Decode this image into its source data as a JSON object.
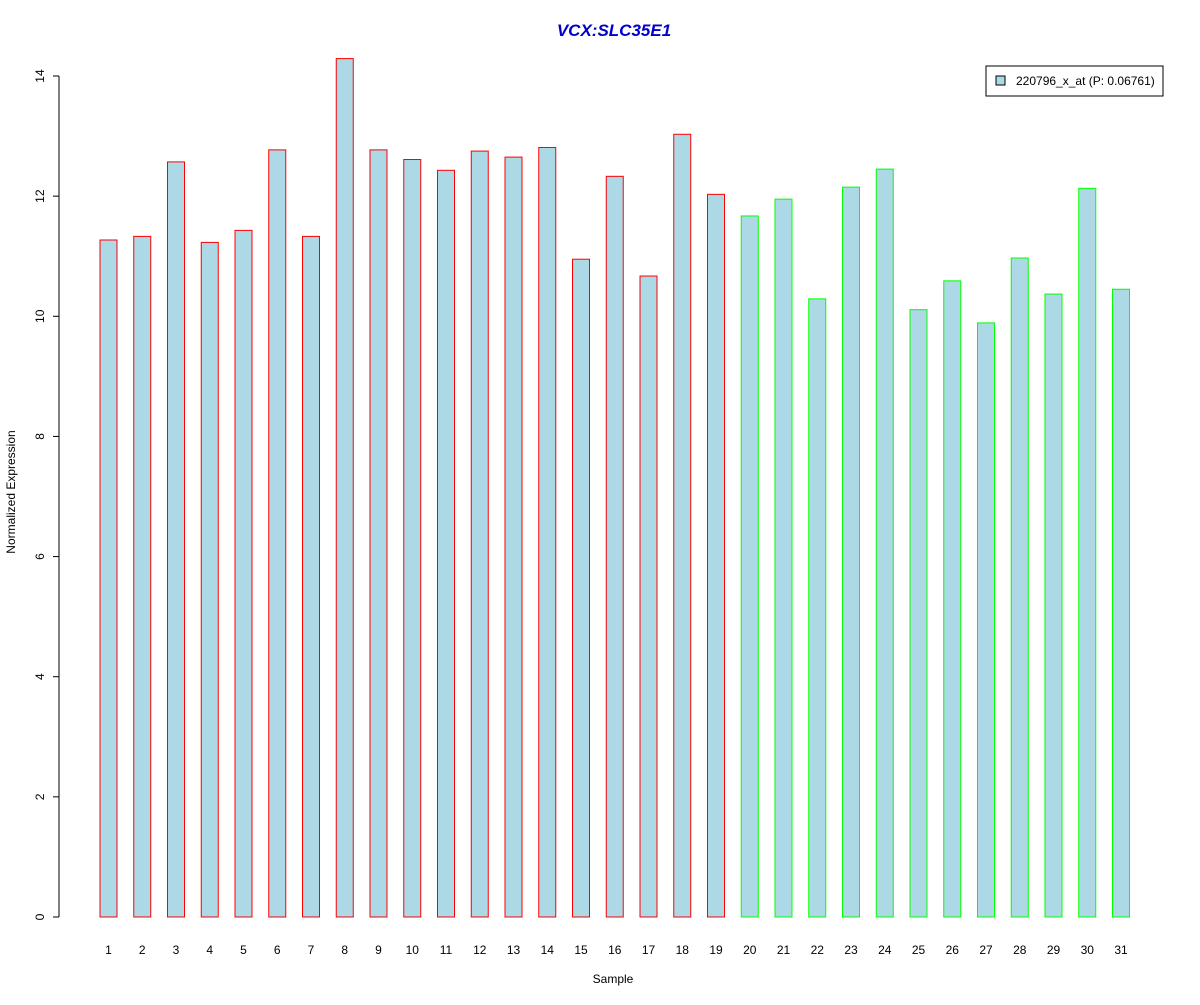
{
  "chart_data": {
    "type": "bar",
    "title": "VCX:SLC35E1",
    "xlabel": "Sample",
    "ylabel": "Normalized Expression",
    "ylim": [
      0,
      14
    ],
    "yticks": [
      "0",
      "2",
      "4",
      "6",
      "8",
      "10",
      "12",
      "14"
    ],
    "grid": false,
    "legend_position": "top-right",
    "categories": [
      "1",
      "2",
      "3",
      "4",
      "5",
      "6",
      "7",
      "8",
      "9",
      "10",
      "11",
      "12",
      "13",
      "14",
      "15",
      "16",
      "17",
      "18",
      "19",
      "20",
      "21",
      "22",
      "23",
      "24",
      "25",
      "26",
      "27",
      "28",
      "29",
      "30",
      "31"
    ],
    "series": [
      {
        "name": "220796_x_at (P: 0.06761)",
        "values": [
          11.27,
          11.33,
          12.57,
          11.23,
          11.43,
          12.77,
          11.33,
          14.29,
          12.77,
          12.61,
          12.43,
          12.75,
          12.65,
          12.81,
          10.95,
          12.33,
          10.67,
          13.03,
          12.03,
          11.67,
          11.95,
          10.29,
          12.15,
          12.45,
          10.11,
          10.59,
          9.89,
          10.97,
          10.37,
          12.13,
          10.45
        ]
      }
    ],
    "groups": [
      {
        "samples": "1-19",
        "border_color": "#ff0000"
      },
      {
        "samples": "20-31",
        "border_color": "#00ff00"
      }
    ],
    "colors": {
      "bar_fill": "#add8e6",
      "group1_border": "#ff0000",
      "group2_border": "#00ff00",
      "title": "#0000cd",
      "axis": "#000000"
    }
  }
}
